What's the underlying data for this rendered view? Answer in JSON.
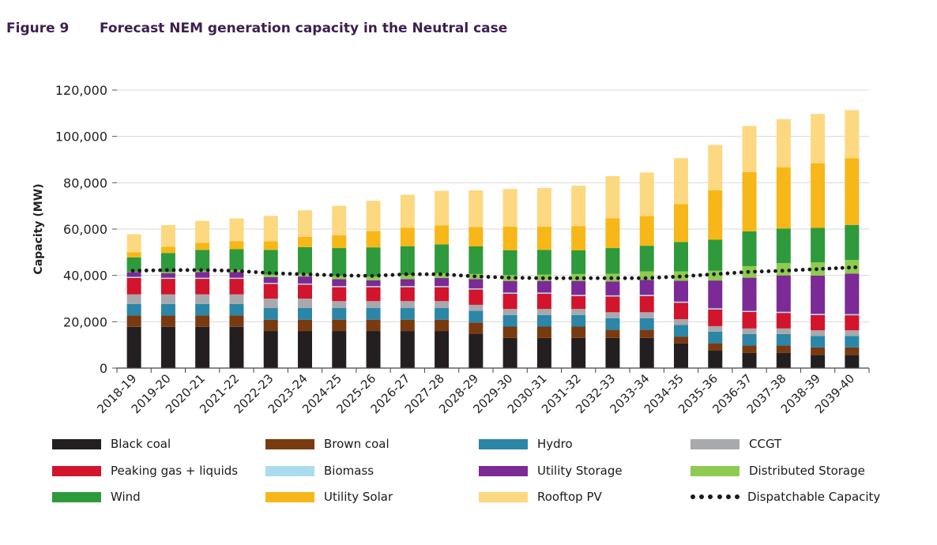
{
  "figure": {
    "number": "Figure 9",
    "title": "Forecast NEM generation capacity in the Neutral case"
  },
  "chart_data": {
    "type": "bar",
    "stacked": true,
    "title": "Forecast NEM generation capacity in the Neutral case",
    "xlabel": "",
    "ylabel": "Capacity (MW)",
    "ylim": [
      0,
      120000
    ],
    "yticks": [
      0,
      20000,
      40000,
      60000,
      80000,
      100000,
      120000
    ],
    "ytick_labels": [
      "0",
      "20,000",
      "40,000",
      "60,000",
      "80,000",
      "100,000",
      "120,000"
    ],
    "grid": true,
    "legend_position": "bottom",
    "categories": [
      "2018-19",
      "2019-20",
      "2020-21",
      "2021-22",
      "2022-23",
      "2023-24",
      "2024-25",
      "2025-26",
      "2026-27",
      "2027-28",
      "2028-29",
      "2029-30",
      "2030-31",
      "2031-32",
      "2032-33",
      "2033-34",
      "2034-35",
      "2035-36",
      "2036-37",
      "2037-38",
      "2038-39",
      "2039-40"
    ],
    "series": [
      {
        "name": "Black coal",
        "color": "#231f20",
        "values": [
          17800,
          17800,
          17800,
          17800,
          16000,
          16000,
          16000,
          16000,
          16000,
          16000,
          14800,
          13000,
          13000,
          13000,
          13000,
          13000,
          10600,
          7500,
          6500,
          6500,
          5700,
          5700
        ]
      },
      {
        "name": "Brown coal",
        "color": "#7a3a10",
        "values": [
          4900,
          4900,
          4900,
          4900,
          4900,
          4900,
          4900,
          4900,
          4900,
          4900,
          4900,
          4900,
          4900,
          4900,
          3500,
          3500,
          3000,
          3200,
          3200,
          3200,
          3200,
          3200
        ]
      },
      {
        "name": "Hydro",
        "color": "#2b86a8",
        "values": [
          5000,
          5000,
          5000,
          5000,
          5000,
          5000,
          5000,
          5000,
          5000,
          5000,
          5000,
          5000,
          5000,
          5000,
          5000,
          5000,
          5000,
          5000,
          5000,
          5000,
          5000,
          5000
        ]
      },
      {
        "name": "CCGT",
        "color": "#a7a9ac",
        "values": [
          4100,
          4100,
          4100,
          4100,
          4100,
          4100,
          3000,
          3000,
          3000,
          3000,
          2600,
          2600,
          2600,
          2600,
          2600,
          2600,
          2500,
          2400,
          2400,
          2400,
          2400,
          2400
        ]
      },
      {
        "name": "Peaking gas + liquids",
        "color": "#d2142c",
        "values": [
          7100,
          6700,
          6700,
          6700,
          6300,
          6000,
          6000,
          6000,
          6000,
          6000,
          6600,
          6600,
          6600,
          5600,
          6800,
          7000,
          7100,
          7200,
          7100,
          6700,
          6600,
          6500
        ]
      },
      {
        "name": "Biomass",
        "color": "#aadcee",
        "values": [
          500,
          500,
          500,
          500,
          500,
          500,
          500,
          500,
          500,
          500,
          500,
          500,
          500,
          500,
          500,
          500,
          500,
          500,
          500,
          500,
          500,
          500
        ]
      },
      {
        "name": "Utility Storage",
        "color": "#7b2a96",
        "values": [
          2000,
          2000,
          2500,
          2500,
          2500,
          3000,
          3000,
          2500,
          3000,
          3500,
          4000,
          5000,
          5000,
          6000,
          6000,
          6500,
          9000,
          12000,
          14300,
          15700,
          16500,
          17500
        ]
      },
      {
        "name": "Distributed Storage",
        "color": "#8ecb4f",
        "values": [
          200,
          400,
          600,
          800,
          1000,
          1200,
          1400,
          1600,
          1800,
          2000,
          2200,
          2500,
          2700,
          3000,
          3300,
          3600,
          4000,
          4200,
          5000,
          5300,
          5700,
          5900
        ]
      },
      {
        "name": "Wind",
        "color": "#2e9a3c",
        "values": [
          6200,
          8300,
          8900,
          9000,
          10700,
          11500,
          12000,
          12600,
          12400,
          12500,
          11900,
          10800,
          10700,
          10200,
          11100,
          11100,
          12700,
          13400,
          15000,
          14900,
          14900,
          15100
        ]
      },
      {
        "name": "Utility Solar",
        "color": "#f7b718",
        "values": [
          2200,
          2700,
          3100,
          3500,
          3700,
          4400,
          5500,
          7000,
          8000,
          8200,
          8400,
          10100,
          10000,
          10500,
          12800,
          12800,
          16400,
          21300,
          25600,
          26500,
          27900,
          28800
        ]
      },
      {
        "name": "Rooftop PV",
        "color": "#fcd881",
        "values": [
          7800,
          9300,
          9400,
          9800,
          11000,
          11500,
          12700,
          13100,
          14200,
          14900,
          15800,
          16300,
          16700,
          17400,
          18300,
          18800,
          19800,
          19600,
          19900,
          20700,
          21300,
          20700
        ]
      }
    ],
    "line_series": {
      "name": "Dispatchable Capacity",
      "color": "#1a1a1a",
      "style": "dotted",
      "values": [
        42000,
        42300,
        42300,
        42000,
        41000,
        40500,
        40000,
        39800,
        40500,
        40500,
        39600,
        39000,
        38800,
        38800,
        38800,
        38800,
        39500,
        40500,
        41500,
        42000,
        42700,
        43500
      ]
    },
    "legend": [
      {
        "label": "Black coal",
        "color": "#231f20"
      },
      {
        "label": "Brown coal",
        "color": "#7a3a10"
      },
      {
        "label": "Hydro",
        "color": "#2b86a8"
      },
      {
        "label": "CCGT",
        "color": "#a7a9ac"
      },
      {
        "label": "Peaking gas + liquids",
        "color": "#d2142c"
      },
      {
        "label": "Biomass",
        "color": "#aadcee"
      },
      {
        "label": "Utility Storage",
        "color": "#7b2a96"
      },
      {
        "label": "Distributed Storage",
        "color": "#8ecb4f"
      },
      {
        "label": "Wind",
        "color": "#2e9a3c"
      },
      {
        "label": "Utility Solar",
        "color": "#f7b718"
      },
      {
        "label": "Rooftop PV",
        "color": "#fcd881"
      },
      {
        "label": "Dispatchable Capacity",
        "color": "#1a1a1a",
        "style": "dotted"
      }
    ]
  }
}
